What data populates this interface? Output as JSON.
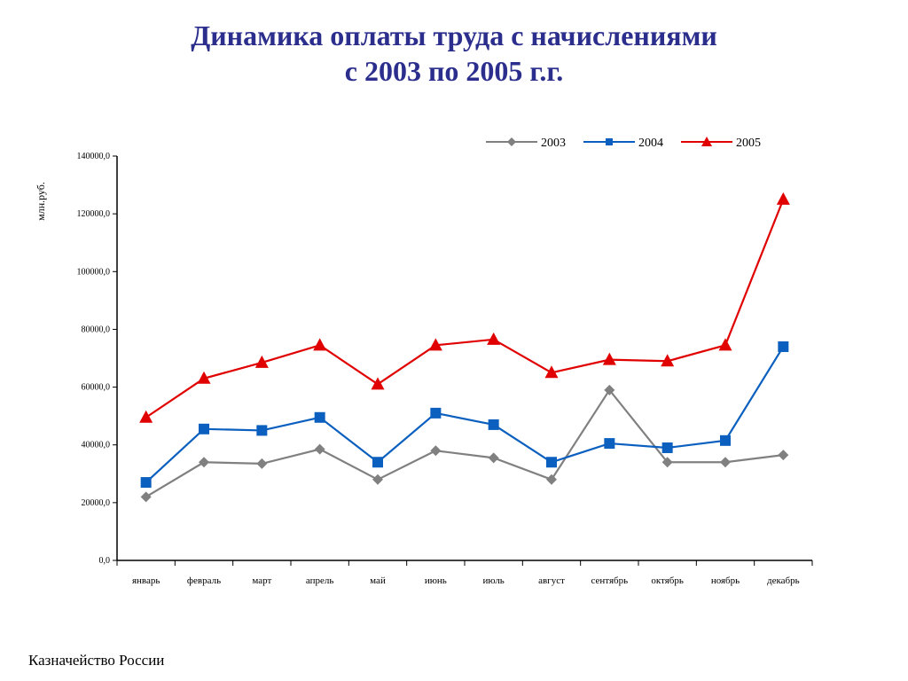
{
  "title": {
    "line1": "Динамика оплаты труда с начислениями",
    "line2": "с 2003 по 2005 г.г."
  },
  "footer": "Казначейство России",
  "colors": {
    "title": "#2b2e8c",
    "s2003": "#808080",
    "s2004": "#0a5fbf",
    "s2005": "#e00000"
  },
  "chart_data": {
    "type": "line",
    "title": "Динамика оплаты труда с начислениями с 2003 по 2005 г.г.",
    "ylabel": "млн.руб.",
    "xlabel": "",
    "ylim": [
      0,
      140000
    ],
    "yticks": [
      0,
      20000,
      40000,
      60000,
      80000,
      100000,
      120000,
      140000
    ],
    "ytick_labels": [
      "0,0",
      "20000,0",
      "40000,0",
      "60000,0",
      "80000,0",
      "100000,0",
      "120000,0",
      "140000,0"
    ],
    "categories": [
      "январь",
      "февраль",
      "март",
      "апрель",
      "май",
      "июнь",
      "июль",
      "август",
      "сентябрь",
      "октябрь",
      "ноябрь",
      "декабрь"
    ],
    "legend_position": "top-right",
    "grid": false,
    "series": [
      {
        "name": "2003",
        "marker": "diamond",
        "color": "#808080",
        "values": [
          22000,
          34000,
          33500,
          38500,
          28000,
          38000,
          35500,
          28000,
          59000,
          34000,
          34000,
          36500
        ]
      },
      {
        "name": "2004",
        "marker": "square",
        "color": "#0a5fbf",
        "values": [
          27000,
          45500,
          45000,
          49500,
          34000,
          51000,
          47000,
          34000,
          40500,
          39000,
          41500,
          74000
        ]
      },
      {
        "name": "2005",
        "marker": "triangle",
        "color": "#e00000",
        "values": [
          49500,
          63000,
          68500,
          74500,
          61000,
          74500,
          76500,
          65000,
          69500,
          69000,
          74500,
          125000
        ]
      }
    ]
  }
}
